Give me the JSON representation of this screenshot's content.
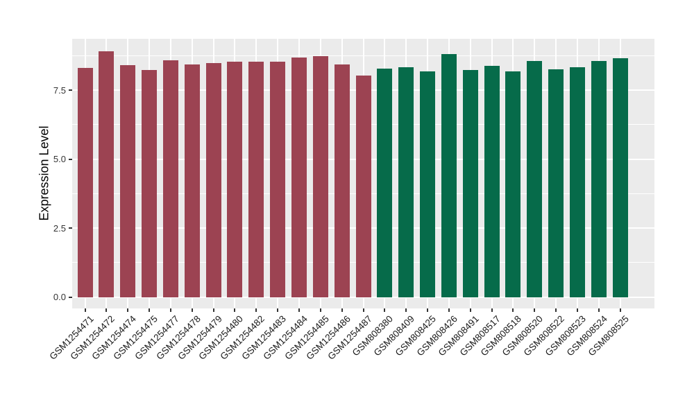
{
  "figure": {
    "background": "#FFFFFF",
    "panel_background": "#EBEBEB",
    "grid_color": "#FFFFFF",
    "axis_text_color": "#333333",
    "axis_title_color": "#000000"
  },
  "chart_data": {
    "type": "bar",
    "title": "",
    "xlabel": "",
    "ylabel": "Expression Level",
    "ylim": [
      0,
      9.4
    ],
    "yticks": [
      0.0,
      2.5,
      5.0,
      7.5
    ],
    "ytick_labels": [
      "0.0",
      "2.5",
      "5.0",
      "7.5"
    ],
    "yticks_minor": [
      1.25,
      3.75,
      6.25,
      8.75
    ],
    "grid": "major and minor horizontal white lines, vertical white line at each category",
    "legend_position": "none",
    "x_label_rotation_deg": 45,
    "palette": {
      "maroon": "#9C4352",
      "green": "#066B4A"
    },
    "samples": [
      {
        "label": "GSM1254471",
        "value": 8.3,
        "color": "maroon"
      },
      {
        "label": "GSM1254472",
        "value": 8.91,
        "color": "maroon"
      },
      {
        "label": "GSM1254474",
        "value": 8.4,
        "color": "maroon"
      },
      {
        "label": "GSM1254475",
        "value": 8.23,
        "color": "maroon"
      },
      {
        "label": "GSM1254477",
        "value": 8.58,
        "color": "maroon"
      },
      {
        "label": "GSM1254478",
        "value": 8.43,
        "color": "maroon"
      },
      {
        "label": "GSM1254479",
        "value": 8.49,
        "color": "maroon"
      },
      {
        "label": "GSM1254480",
        "value": 8.52,
        "color": "maroon"
      },
      {
        "label": "GSM1254482",
        "value": 8.52,
        "color": "maroon"
      },
      {
        "label": "GSM1254483",
        "value": 8.54,
        "color": "maroon"
      },
      {
        "label": "GSM1254484",
        "value": 8.67,
        "color": "maroon"
      },
      {
        "label": "GSM1254485",
        "value": 8.74,
        "color": "maroon"
      },
      {
        "label": "GSM1254486",
        "value": 8.44,
        "color": "maroon"
      },
      {
        "label": "GSM1254487",
        "value": 8.02,
        "color": "maroon"
      },
      {
        "label": "GSM808380",
        "value": 8.27,
        "color": "green"
      },
      {
        "label": "GSM808409",
        "value": 8.34,
        "color": "green"
      },
      {
        "label": "GSM808425",
        "value": 8.19,
        "color": "green"
      },
      {
        "label": "GSM808426",
        "value": 8.81,
        "color": "green"
      },
      {
        "label": "GSM808491",
        "value": 8.23,
        "color": "green"
      },
      {
        "label": "GSM808517",
        "value": 8.38,
        "color": "green"
      },
      {
        "label": "GSM808518",
        "value": 8.19,
        "color": "green"
      },
      {
        "label": "GSM808520",
        "value": 8.56,
        "color": "green"
      },
      {
        "label": "GSM808522",
        "value": 8.25,
        "color": "green"
      },
      {
        "label": "GSM808523",
        "value": 8.34,
        "color": "green"
      },
      {
        "label": "GSM808524",
        "value": 8.55,
        "color": "green"
      },
      {
        "label": "GSM808525",
        "value": 8.66,
        "color": "green"
      }
    ]
  }
}
